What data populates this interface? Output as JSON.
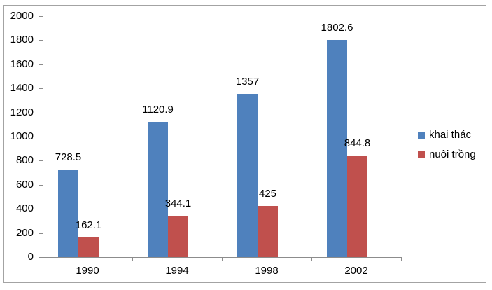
{
  "chart_data": {
    "type": "bar",
    "title": "",
    "xlabel": "",
    "ylabel": "",
    "categories": [
      "1990",
      "1994",
      "1998",
      "2002"
    ],
    "series": [
      {
        "name": "khai thác",
        "color": "#4F81BD",
        "values": [
          728.5,
          1120.9,
          1357,
          1802.6
        ],
        "labels": [
          "728.5",
          "1120.9",
          "1357",
          "1802.6"
        ]
      },
      {
        "name": "nuôi trồng",
        "color": "#C0504D",
        "values": [
          162.1,
          344.1,
          425,
          844.8
        ],
        "labels": [
          "162.1",
          "344.1",
          "425",
          "844.8"
        ]
      }
    ],
    "ylim": [
      0,
      2000
    ],
    "ytick_step": 200,
    "ytick_labels": [
      "0",
      "200",
      "400",
      "600",
      "800",
      "1000",
      "1200",
      "1400",
      "1600",
      "1800",
      "2000"
    ],
    "grid": false,
    "data_labels": true,
    "legend_position": "right",
    "axis_color": "#8C8C8C",
    "border_color": "#A3A3A3",
    "text_color": "#000000"
  }
}
